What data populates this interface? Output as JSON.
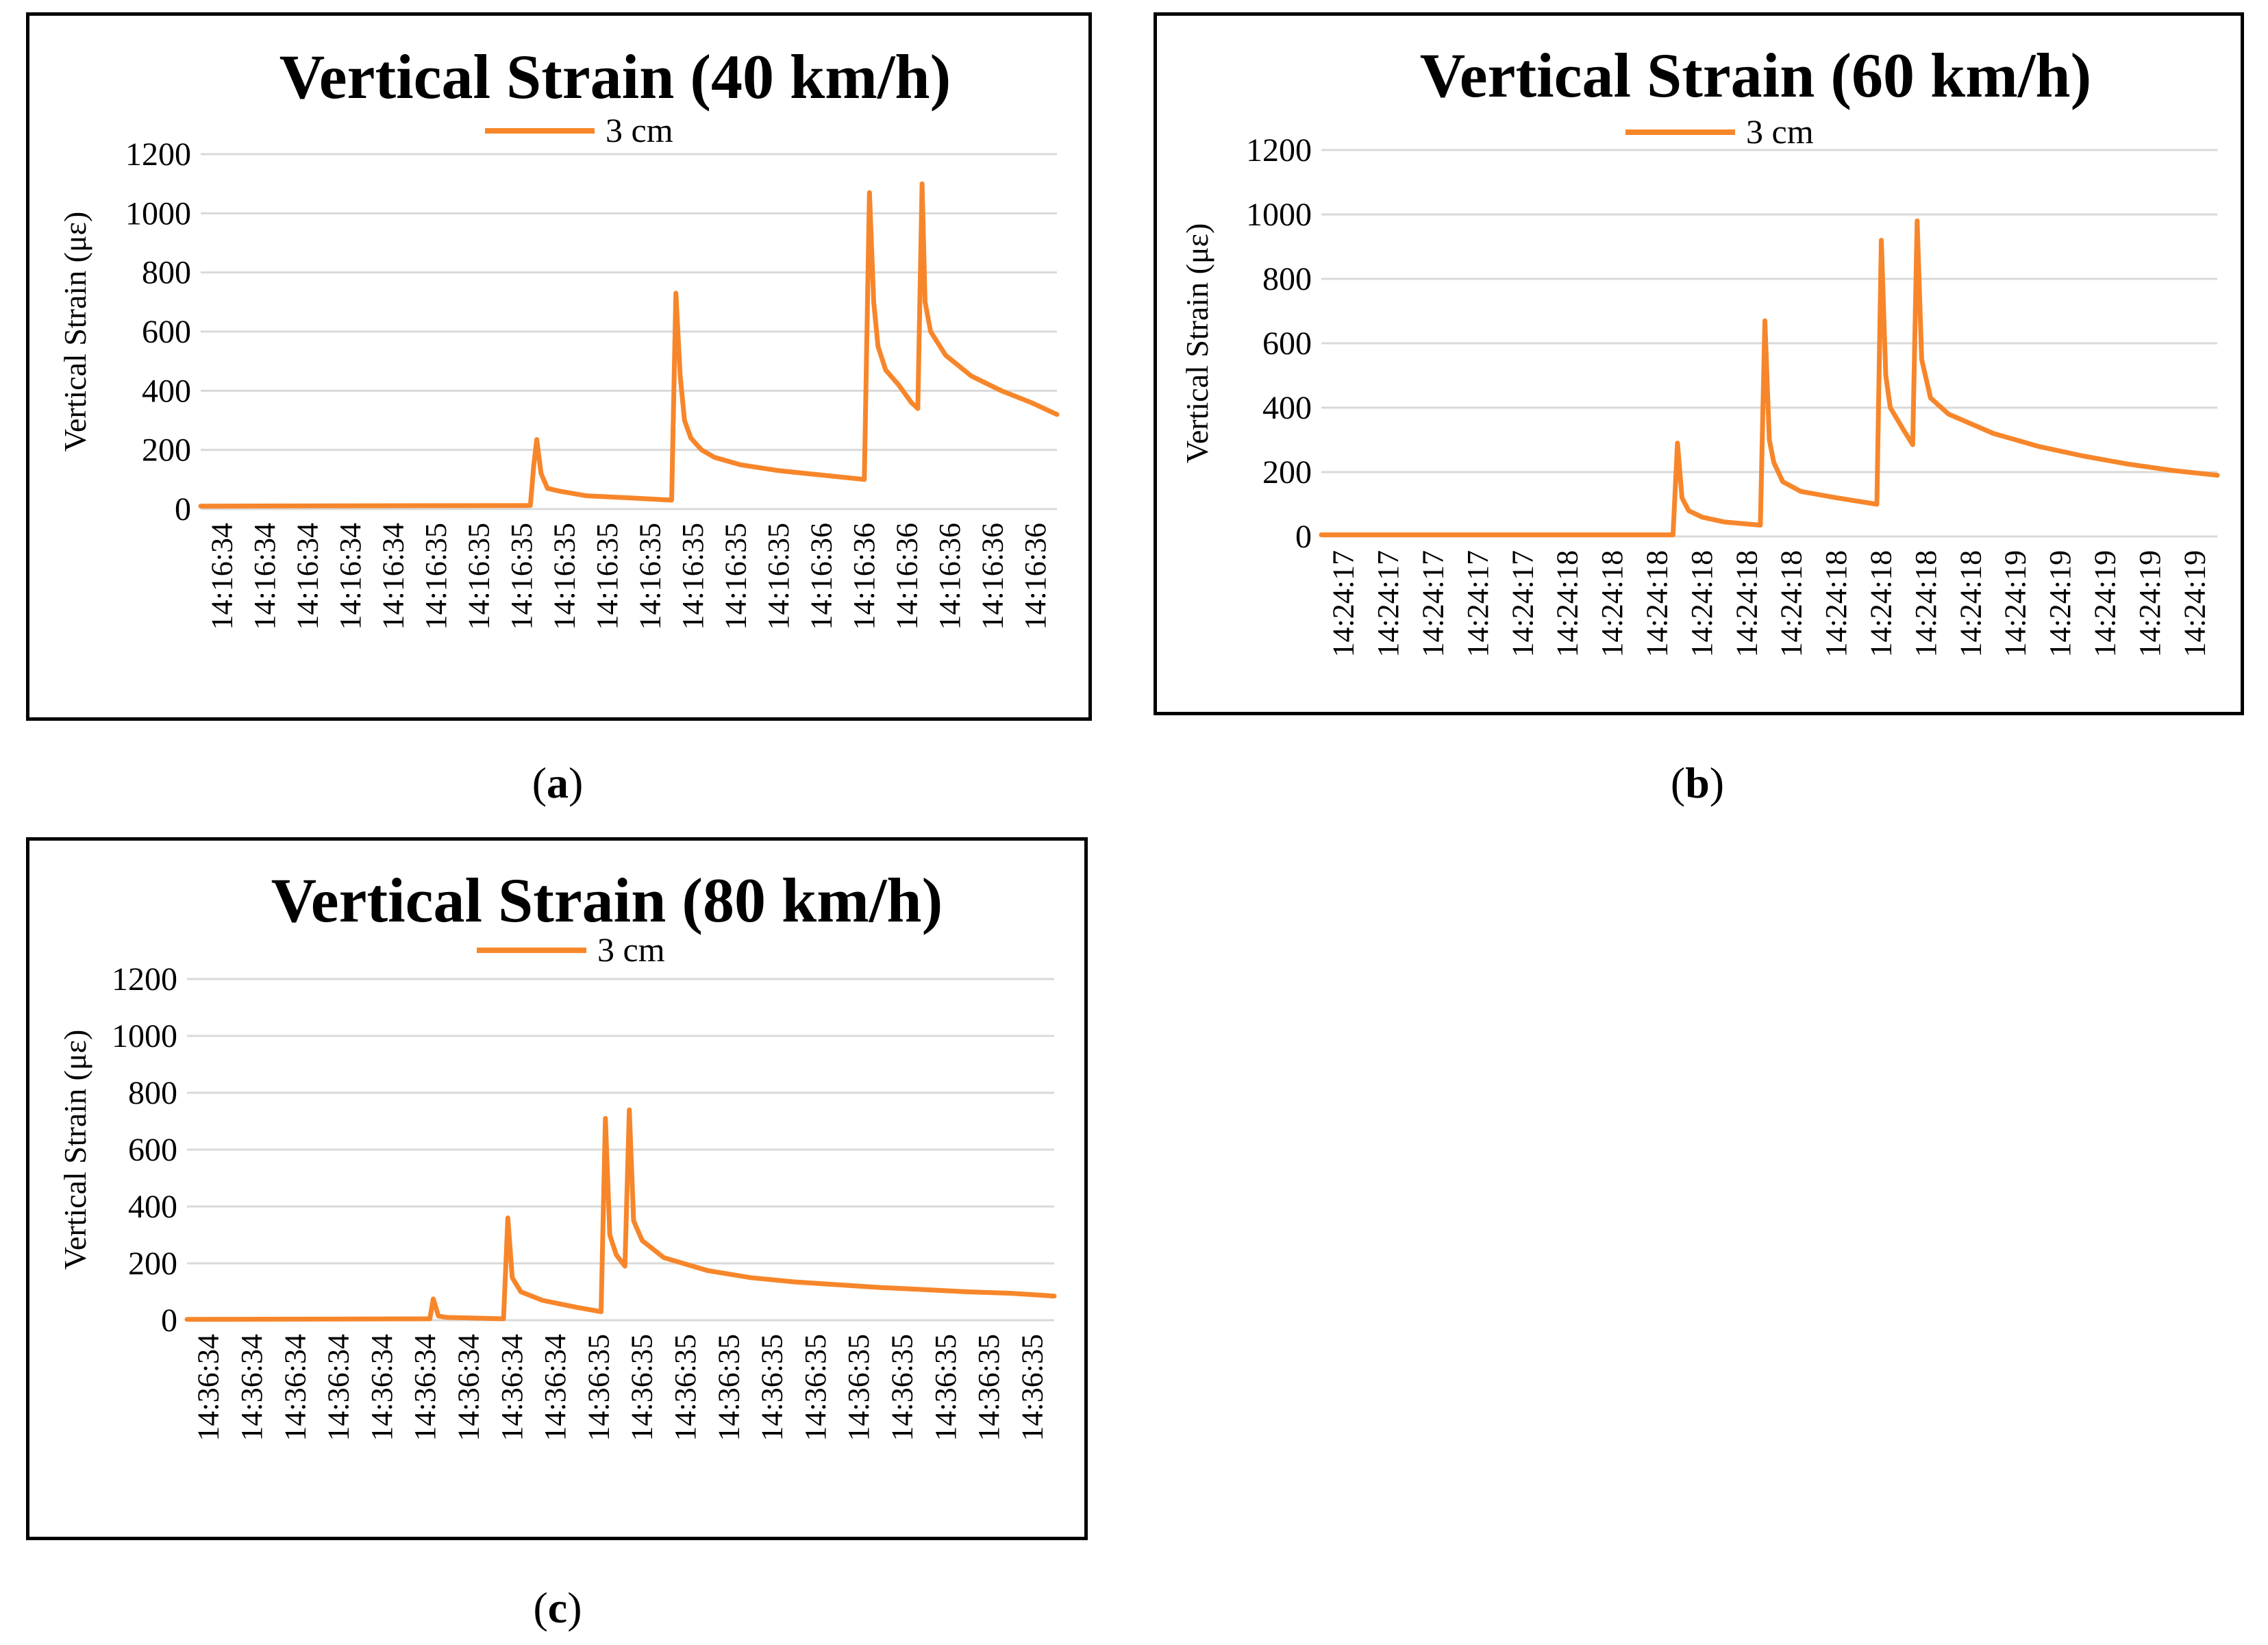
{
  "colors": {
    "series": "#F7862B",
    "grid": "#D9D9D9",
    "frame": "#000000",
    "text": "#000000"
  },
  "panels": [
    {
      "caption_letter": "a",
      "chart_data": {
        "type": "line",
        "title": "Vertical Strain (40 km/h)",
        "legend": "3 cm",
        "legend_position": "top-center",
        "xlabel": "",
        "ylabel": "Vertical Strain (με)",
        "ylim": [
          0,
          1200
        ],
        "yticks": [
          0,
          200,
          400,
          600,
          800,
          1000,
          1200
        ],
        "grid": true,
        "x_tick_labels": [
          "14:16:34",
          "14:16:34",
          "14:16:34",
          "14:16:34",
          "14:16:34",
          "14:16:35",
          "14:16:35",
          "14:16:35",
          "14:16:35",
          "14:16:35",
          "14:16:35",
          "14:16:35",
          "14:16:35",
          "14:16:35",
          "14:16:36",
          "14:16:36",
          "14:16:36",
          "14:16:36",
          "14:16:36",
          "14:16:36"
        ],
        "series": [
          {
            "name": "3 cm",
            "x": [
              0,
              7.7,
              7.78,
              7.85,
              7.95,
              8.1,
              8.4,
              9,
              10,
              11,
              11.1,
              11.2,
              11.3,
              11.45,
              11.7,
              12,
              12.6,
              13.5,
              14.5,
              15.5,
              15.62,
              15.72,
              15.82,
              16,
              16.3,
              16.6,
              16.75,
              16.85,
              16.92,
              17.05,
              17.4,
              18,
              18.7,
              19.4,
              20
            ],
            "values": [
              10,
              12,
              150,
              235,
              120,
              70,
              60,
              45,
              38,
              30,
              730,
              450,
              300,
              240,
              200,
              175,
              150,
              130,
              115,
              100,
              1070,
              700,
              550,
              470,
              420,
              360,
              340,
              1100,
              700,
              600,
              520,
              450,
              400,
              360,
              320
            ]
          }
        ]
      }
    },
    {
      "caption_letter": "b",
      "chart_data": {
        "type": "line",
        "title": "Vertical Strain (60 km/h)",
        "legend": "3 cm",
        "legend_position": "top-center",
        "xlabel": "",
        "ylabel": "Vertical Strain (με)",
        "ylim": [
          0,
          1200
        ],
        "yticks": [
          0,
          200,
          400,
          600,
          800,
          1000,
          1200
        ],
        "grid": true,
        "x_tick_labels": [
          "14:24:17",
          "14:24:17",
          "14:24:17",
          "14:24:17",
          "14:24:17",
          "14:24:18",
          "14:24:18",
          "14:24:18",
          "14:24:18",
          "14:24:18",
          "14:24:18",
          "14:24:18",
          "14:24:18",
          "14:24:18",
          "14:24:18",
          "14:24:19",
          "14:24:19",
          "14:24:19",
          "14:24:19",
          "14:24:19"
        ],
        "series": [
          {
            "name": "3 cm",
            "x": [
              0,
              7.85,
              7.95,
              8.05,
              8.2,
              8.5,
              9,
              9.8,
              9.9,
              10,
              10.1,
              10.3,
              10.7,
              11.5,
              12.4,
              12.5,
              12.6,
              12.7,
              13.0,
              13.2,
              13.3,
              13.4,
              13.6,
              14,
              15,
              16,
              17,
              18,
              19,
              20
            ],
            "values": [
              5,
              5,
              290,
              120,
              80,
              60,
              45,
              35,
              670,
              300,
              230,
              170,
              140,
              120,
              100,
              920,
              500,
              400,
              330,
              285,
              980,
              550,
              430,
              380,
              320,
              280,
              250,
              225,
              205,
              190
            ]
          }
        ]
      }
    },
    {
      "caption_letter": "c",
      "chart_data": {
        "type": "line",
        "title": "Vertical Strain (80 km/h)",
        "legend": "3 cm",
        "legend_position": "top-center",
        "xlabel": "",
        "ylabel": "Vertical Strain (με)",
        "ylim": [
          0,
          1200
        ],
        "yticks": [
          0,
          200,
          400,
          600,
          800,
          1000,
          1200
        ],
        "grid": true,
        "x_tick_labels": [
          "14:36:34",
          "14:36:34",
          "14:36:34",
          "14:36:34",
          "14:36:34",
          "14:36:34",
          "14:36:34",
          "14:36:34",
          "14:36:34",
          "14:36:35",
          "14:36:35",
          "14:36:35",
          "14:36:35",
          "14:36:35",
          "14:36:35",
          "14:36:35",
          "14:36:35",
          "14:36:35",
          "14:36:35",
          "14:36:35"
        ],
        "series": [
          {
            "name": "3 cm",
            "x": [
              0,
              5.6,
              5.68,
              5.8,
              6,
              7.3,
              7.4,
              7.5,
              7.7,
              8.2,
              9,
              9.55,
              9.65,
              9.75,
              9.9,
              10.1,
              10.2,
              10.3,
              10.5,
              11,
              12,
              13,
              14,
              15,
              16,
              17,
              18,
              19,
              20
            ],
            "values": [
              3,
              5,
              75,
              15,
              10,
              5,
              360,
              150,
              100,
              70,
              45,
              30,
              710,
              300,
              230,
              190,
              740,
              350,
              280,
              220,
              175,
              150,
              135,
              125,
              115,
              108,
              100,
              95,
              85
            ]
          }
        ]
      }
    }
  ]
}
